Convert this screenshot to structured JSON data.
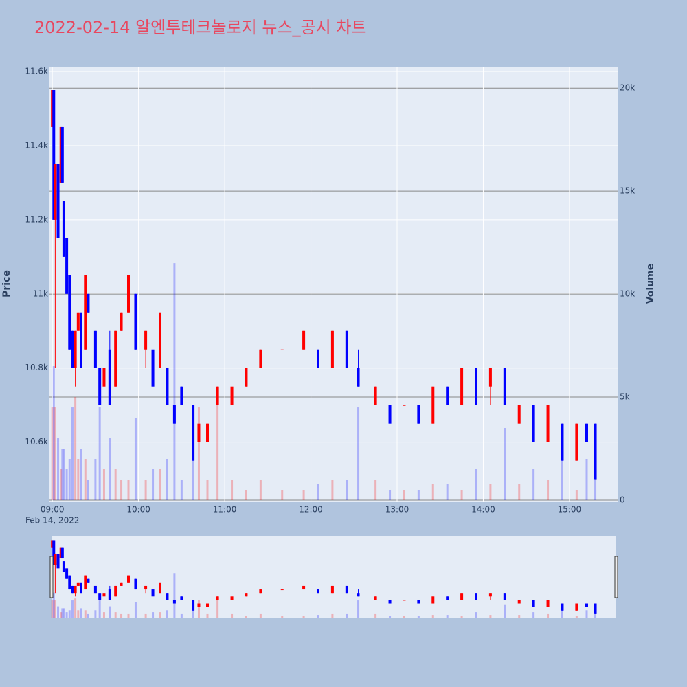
{
  "chart_data": {
    "type": "candlestick",
    "title": "2022-02-14 알엔투테크놀로지 뉴스_공시 차트",
    "y_label": "Price",
    "y2_label": "Volume",
    "date_label": "Feb 14, 2022",
    "increasing_color": "#ff0000",
    "decreasing_color": "#0000ff",
    "x": [
      "09:00",
      "09:01",
      "09:02",
      "09:04",
      "09:06",
      "09:07",
      "09:08",
      "09:10",
      "09:12",
      "09:14",
      "09:16",
      "09:18",
      "09:20",
      "09:23",
      "09:25",
      "09:30",
      "09:33",
      "09:36",
      "09:40",
      "09:44",
      "09:48",
      "09:53",
      "09:58",
      "10:05",
      "10:10",
      "10:15",
      "10:20",
      "10:25",
      "10:30",
      "10:38",
      "10:42",
      "10:48",
      "10:55",
      "11:05",
      "11:15",
      "11:25",
      "11:40",
      "11:55",
      "12:05",
      "12:15",
      "12:25",
      "12:33",
      "12:45",
      "12:55",
      "13:05",
      "13:15",
      "13:25",
      "13:35",
      "13:45",
      "13:55",
      "14:05",
      "14:15",
      "14:25",
      "14:35",
      "14:45",
      "14:55",
      "15:05",
      "15:12",
      "15:18"
    ],
    "open": [
      11450,
      11550,
      11200,
      11350,
      11300,
      11450,
      11250,
      11150,
      11050,
      10900,
      10800,
      10900,
      10950,
      10850,
      11000,
      10900,
      10800,
      10750,
      10850,
      10750,
      10900,
      10950,
      11000,
      10850,
      10850,
      10800,
      10800,
      10700,
      10750,
      10700,
      10600,
      10600,
      10700,
      10700,
      10750,
      10800,
      10850,
      10850,
      10850,
      10800,
      10900,
      10800,
      10700,
      10700,
      10700,
      10700,
      10650,
      10750,
      10700,
      10800,
      10750,
      10800,
      10650,
      10700,
      10600,
      10650,
      10550,
      10650,
      10650
    ],
    "high": [
      11550,
      11550,
      11350,
      11350,
      11450,
      11450,
      11250,
      11150,
      11050,
      10900,
      10900,
      10950,
      10950,
      11050,
      11000,
      10900,
      10800,
      10800,
      10900,
      10900,
      10950,
      11050,
      11000,
      10900,
      10850,
      10950,
      10800,
      10700,
      10750,
      10700,
      10650,
      10650,
      10750,
      10750,
      10800,
      10850,
      10850,
      10900,
      10850,
      10900,
      10900,
      10850,
      10750,
      10700,
      10700,
      10700,
      10750,
      10750,
      10800,
      10800,
      10800,
      10800,
      10700,
      10700,
      10700,
      10650,
      10650,
      10650,
      10650
    ],
    "low": [
      11450,
      11200,
      10800,
      11150,
      11300,
      11300,
      11100,
      11000,
      10850,
      10800,
      10750,
      10900,
      10800,
      10850,
      10950,
      10800,
      10700,
      10750,
      10700,
      10750,
      10900,
      10950,
      10850,
      10800,
      10750,
      10800,
      10700,
      10650,
      10700,
      10550,
      10600,
      10600,
      10700,
      10700,
      10750,
      10800,
      10850,
      10850,
      10800,
      10800,
      10800,
      10750,
      10700,
      10650,
      10700,
      10650,
      10650,
      10700,
      10700,
      10700,
      10700,
      10700,
      10650,
      10600,
      10600,
      10550,
      10550,
      10600,
      10500
    ],
    "close": [
      11550,
      11200,
      11350,
      11150,
      11450,
      11300,
      11100,
      11000,
      10850,
      10800,
      10900,
      10950,
      10800,
      11050,
      10950,
      10800,
      10700,
      10800,
      10700,
      10900,
      10950,
      11050,
      10850,
      10900,
      10750,
      10950,
      10700,
      10650,
      10700,
      10550,
      10650,
      10650,
      10750,
      10750,
      10800,
      10850,
      10850,
      10900,
      10800,
      10900,
      10800,
      10750,
      10750,
      10650,
      10700,
      10650,
      10750,
      10700,
      10800,
      10700,
      10800,
      10700,
      10700,
      10600,
      10700,
      10550,
      10650,
      10600,
      10500
    ],
    "volume": [
      4500,
      6500,
      4500,
      3000,
      1500,
      2500,
      2500,
      1500,
      2000,
      4500,
      5000,
      2000,
      2500,
      2000,
      1000,
      2000,
      4500,
      1500,
      3000,
      1500,
      1000,
      1000,
      4000,
      1000,
      1500,
      1500,
      2000,
      11500,
      1000,
      3000,
      4500,
      1000,
      5000,
      1000,
      500,
      1000,
      500,
      500,
      800,
      1000,
      1000,
      4500,
      1000,
      500,
      500,
      500,
      800,
      800,
      500,
      1500,
      800,
      3500,
      800,
      1500,
      1000,
      3500,
      500,
      2000,
      1000
    ],
    "xlim": [
      "08:58",
      "15:34"
    ],
    "xticks": [
      "09:00",
      "10:00",
      "11:00",
      "12:00",
      "13:00",
      "14:00",
      "15:00"
    ],
    "ylim": [
      10440,
      11613
    ],
    "yticks": [
      {
        "value": 10600,
        "label": "10.6k"
      },
      {
        "value": 10800,
        "label": "10.8k"
      },
      {
        "value": 11000,
        "label": "11k"
      },
      {
        "value": 11200,
        "label": "11.2k"
      },
      {
        "value": 11400,
        "label": "11.4k"
      },
      {
        "value": 11600,
        "label": "11.6k"
      }
    ],
    "y2lim": [
      -67,
      21040
    ],
    "y2ticks": [
      0,
      {
        "value": 5000,
        "label": "5k"
      },
      {
        "value": 10000,
        "label": "10k"
      },
      {
        "value": 15000,
        "label": "15k"
      },
      {
        "value": 20000,
        "label": "20k"
      }
    ],
    "grid": true
  }
}
